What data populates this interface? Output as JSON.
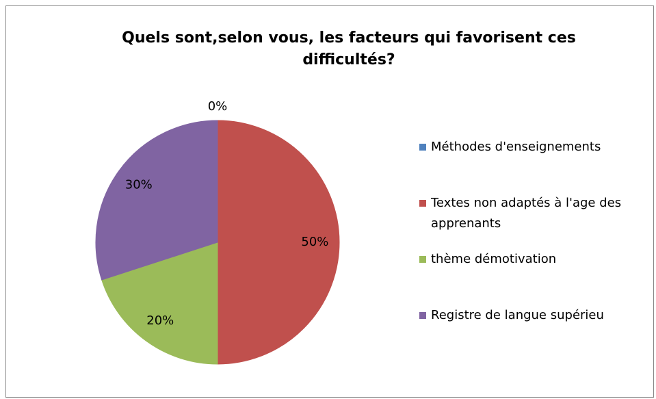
{
  "chart_data": {
    "type": "pie",
    "title": "Quels sont,selon vous, les facteurs qui favorisent ces difficultés?",
    "categories": [
      "Méthodes d'enseignements",
      "Textes non adaptés à l'age des apprenants",
      "thème démotivation",
      "Registre de langue supérieu"
    ],
    "values": [
      0,
      50,
      20,
      30
    ],
    "value_labels": [
      "0%",
      "50%",
      "20%",
      "30%"
    ],
    "colors": [
      "#4f81bd",
      "#c0504d",
      "#9bbb59",
      "#8064a2"
    ],
    "legend": "right"
  }
}
